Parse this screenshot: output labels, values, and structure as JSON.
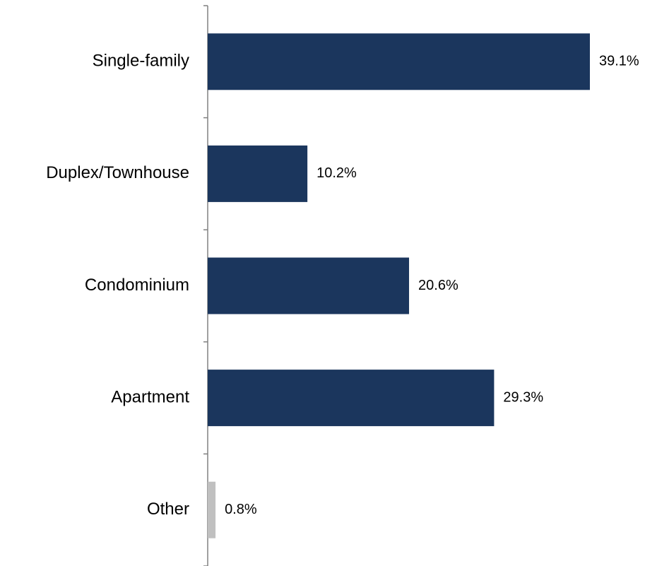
{
  "chart_data": {
    "type": "bar",
    "orientation": "horizontal",
    "categories": [
      "Single-family",
      "Duplex/Townhouse",
      "Condominium",
      "Apartment",
      "Other"
    ],
    "values": [
      39.1,
      10.2,
      20.6,
      29.3,
      0.8
    ],
    "value_labels": [
      "39.1%",
      "10.2%",
      "20.6%",
      "29.3%",
      "0.8%"
    ],
    "colors": [
      "#1b365d",
      "#1b365d",
      "#1b365d",
      "#1b365d",
      "#c0c0c0"
    ]
  }
}
